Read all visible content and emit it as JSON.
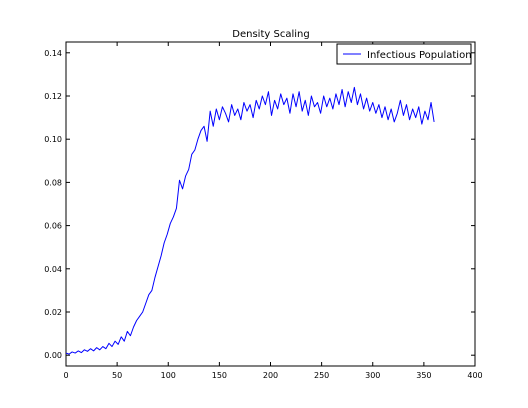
{
  "chart_data": {
    "type": "line",
    "title": "Density Scaling",
    "xlabel": "",
    "ylabel": "",
    "xlim": [
      0,
      400
    ],
    "ylim": [
      -0.005,
      0.145
    ],
    "xticks": [
      0,
      50,
      100,
      150,
      200,
      250,
      300,
      350,
      400
    ],
    "yticks": [
      0.0,
      0.02,
      0.04,
      0.06,
      0.08,
      0.1,
      0.12,
      0.14
    ],
    "ytick_labels": [
      "0.00",
      "0.02",
      "0.04",
      "0.06",
      "0.08",
      "0.10",
      "0.12",
      "0.14"
    ],
    "xtick_labels": [
      "0",
      "50",
      "100",
      "150",
      "200",
      "250",
      "300",
      "350",
      "400"
    ],
    "legend": {
      "position": "upper right",
      "entries": [
        "Infectious Population"
      ]
    },
    "series": [
      {
        "name": "Infectious Population",
        "color": "#0000ff",
        "x": [
          0,
          3,
          6,
          9,
          12,
          15,
          18,
          21,
          24,
          27,
          30,
          33,
          36,
          39,
          42,
          45,
          48,
          51,
          54,
          57,
          60,
          63,
          66,
          69,
          72,
          75,
          78,
          81,
          84,
          87,
          90,
          93,
          96,
          99,
          102,
          105,
          108,
          111,
          114,
          117,
          120,
          123,
          126,
          129,
          132,
          135,
          138,
          141,
          144,
          147,
          150,
          153,
          156,
          159,
          162,
          165,
          168,
          171,
          174,
          177,
          180,
          183,
          186,
          189,
          192,
          195,
          198,
          201,
          204,
          207,
          210,
          213,
          216,
          219,
          222,
          225,
          228,
          231,
          234,
          237,
          240,
          243,
          246,
          249,
          252,
          255,
          258,
          261,
          264,
          267,
          270,
          273,
          276,
          279,
          282,
          285,
          288,
          291,
          294,
          297,
          300,
          303,
          306,
          309,
          312,
          315,
          318,
          321,
          324,
          327,
          330,
          333,
          336,
          339,
          342,
          345,
          348,
          351,
          354,
          357,
          360
        ],
        "values": [
          0.001,
          0.0005,
          0.0015,
          0.001,
          0.002,
          0.0012,
          0.0025,
          0.0018,
          0.003,
          0.002,
          0.0035,
          0.0025,
          0.004,
          0.003,
          0.0055,
          0.004,
          0.0065,
          0.005,
          0.0085,
          0.0065,
          0.011,
          0.009,
          0.013,
          0.016,
          0.018,
          0.02,
          0.024,
          0.028,
          0.03,
          0.036,
          0.041,
          0.046,
          0.052,
          0.056,
          0.061,
          0.064,
          0.068,
          0.081,
          0.077,
          0.083,
          0.086,
          0.093,
          0.095,
          0.1,
          0.104,
          0.106,
          0.099,
          0.113,
          0.106,
          0.114,
          0.109,
          0.115,
          0.112,
          0.108,
          0.116,
          0.111,
          0.114,
          0.109,
          0.117,
          0.113,
          0.116,
          0.11,
          0.118,
          0.114,
          0.12,
          0.116,
          0.122,
          0.111,
          0.118,
          0.114,
          0.121,
          0.116,
          0.119,
          0.112,
          0.121,
          0.115,
          0.122,
          0.113,
          0.118,
          0.111,
          0.12,
          0.115,
          0.117,
          0.112,
          0.12,
          0.115,
          0.119,
          0.114,
          0.121,
          0.116,
          0.123,
          0.115,
          0.122,
          0.117,
          0.124,
          0.116,
          0.121,
          0.114,
          0.119,
          0.113,
          0.117,
          0.112,
          0.116,
          0.11,
          0.115,
          0.109,
          0.114,
          0.108,
          0.112,
          0.118,
          0.111,
          0.116,
          0.109,
          0.114,
          0.11,
          0.115,
          0.107,
          0.113,
          0.109,
          0.117,
          0.108
        ]
      }
    ]
  }
}
